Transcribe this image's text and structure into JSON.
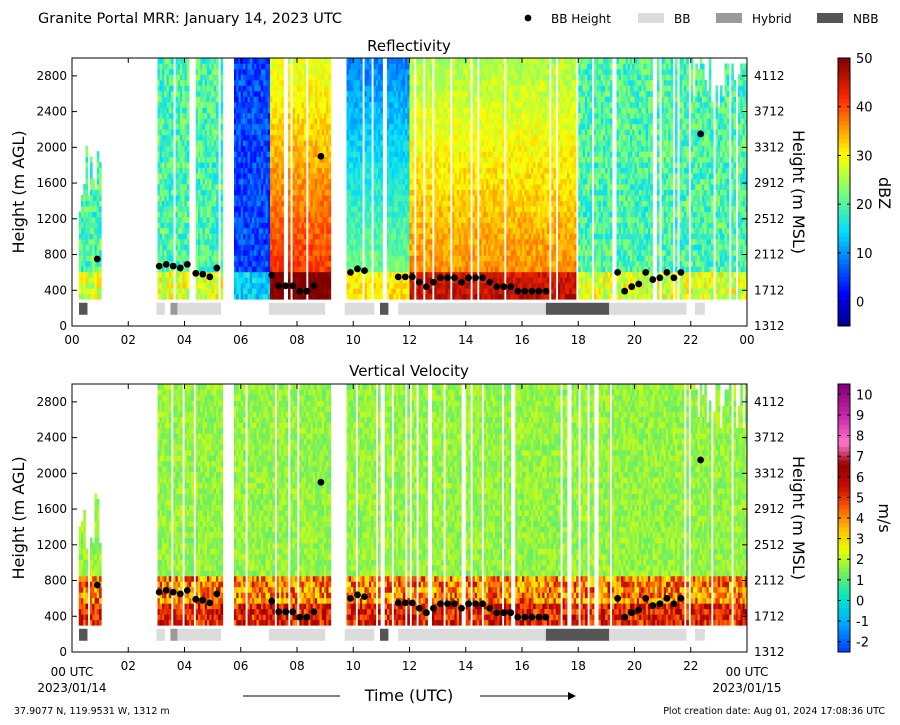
{
  "header": {
    "title": "Granite Portal MRR:  January 14, 2023 UTC",
    "legend": [
      {
        "label": "BB Height",
        "kind": "dot",
        "color": "#000000"
      },
      {
        "label": "BB",
        "kind": "box",
        "color": "#dcdcdc"
      },
      {
        "label": "Hybrid",
        "kind": "box",
        "color": "#9a9a9a"
      },
      {
        "label": "NBB",
        "kind": "box",
        "color": "#555555"
      }
    ]
  },
  "footer": {
    "location": "37.9077 N, 119.9531 W, 1312 m",
    "created": "Plot creation date: Aug 01, 2024 17:08:36 UTC",
    "xlabel": "Time (UTC)",
    "x_start_label": "00 UTC",
    "x_start_date": "2023/01/14",
    "x_end_label": "00 UTC",
    "x_end_date": "2023/01/15"
  },
  "chart_data": [
    {
      "type": "heatmap",
      "title": "Reflectivity",
      "ylabel": "Height (m AGL)",
      "ylabel_right": "Height (m MSL)",
      "colorbar_label": "dBZ",
      "colorbar_ticks": [
        "0",
        "10",
        "20",
        "30",
        "40",
        "50"
      ],
      "colorbar_range": [
        -5,
        50
      ],
      "x_ticks": [
        "00",
        "02",
        "04",
        "06",
        "08",
        "10",
        "12",
        "14",
        "16",
        "18",
        "20",
        "22",
        "00"
      ],
      "y_ticks": [
        "0",
        "400",
        "800",
        "1200",
        "1600",
        "2000",
        "2400",
        "2800"
      ],
      "y_ticks_right": [
        "1312",
        "1712",
        "2112",
        "2512",
        "2912",
        "3312",
        "3712",
        "4112"
      ],
      "xlim": [
        0,
        24
      ],
      "ylim": [
        0,
        3000
      ],
      "field": "reflectivity"
    },
    {
      "type": "heatmap",
      "title": "Vertical Velocity",
      "ylabel": "Height (m AGL)",
      "ylabel_right": "Height (m MSL)",
      "colorbar_label": "m/s",
      "colorbar_ticks": [
        "-2",
        "-1",
        "0",
        "1",
        "2",
        "3",
        "4",
        "5",
        "6",
        "7",
        "8",
        "9",
        "10"
      ],
      "colorbar_range": [
        -2.5,
        10.5
      ],
      "x_ticks": [
        "",
        "02",
        "04",
        "06",
        "08",
        "10",
        "12",
        "14",
        "16",
        "18",
        "20",
        "22",
        ""
      ],
      "y_ticks": [
        "0",
        "400",
        "800",
        "1200",
        "1600",
        "2000",
        "2400",
        "2800"
      ],
      "y_ticks_right": [
        "1312",
        "1712",
        "2112",
        "2512",
        "2912",
        "3312",
        "3712",
        "4112"
      ],
      "xlim": [
        0,
        24
      ],
      "ylim": [
        0,
        3000
      ],
      "field": "velocity"
    }
  ],
  "shared": {
    "bb_height": [
      [
        0.9,
        750
      ],
      [
        3.1,
        670
      ],
      [
        3.35,
        690
      ],
      [
        3.6,
        670
      ],
      [
        3.85,
        650
      ],
      [
        4.1,
        690
      ],
      [
        4.4,
        590
      ],
      [
        4.65,
        580
      ],
      [
        4.9,
        550
      ],
      [
        5.15,
        650
      ],
      [
        7.1,
        570
      ],
      [
        7.35,
        450
      ],
      [
        7.6,
        450
      ],
      [
        7.85,
        450
      ],
      [
        8.1,
        390
      ],
      [
        8.35,
        390
      ],
      [
        8.6,
        450
      ],
      [
        8.85,
        1900
      ],
      [
        9.9,
        600
      ],
      [
        10.15,
        640
      ],
      [
        10.4,
        620
      ],
      [
        11.6,
        550
      ],
      [
        11.85,
        550
      ],
      [
        12.1,
        550
      ],
      [
        12.35,
        490
      ],
      [
        12.6,
        440
      ],
      [
        12.85,
        490
      ],
      [
        13.1,
        540
      ],
      [
        13.35,
        540
      ],
      [
        13.6,
        540
      ],
      [
        13.85,
        490
      ],
      [
        14.1,
        540
      ],
      [
        14.35,
        540
      ],
      [
        14.6,
        540
      ],
      [
        14.85,
        490
      ],
      [
        15.1,
        440
      ],
      [
        15.35,
        440
      ],
      [
        15.6,
        440
      ],
      [
        15.85,
        390
      ],
      [
        16.1,
        390
      ],
      [
        16.35,
        390
      ],
      [
        16.6,
        390
      ],
      [
        16.85,
        390
      ],
      [
        19.4,
        600
      ],
      [
        19.65,
        390
      ],
      [
        19.9,
        440
      ],
      [
        20.15,
        470
      ],
      [
        20.4,
        600
      ],
      [
        20.65,
        520
      ],
      [
        20.9,
        540
      ],
      [
        21.15,
        600
      ],
      [
        21.4,
        540
      ],
      [
        21.65,
        600
      ],
      [
        22.35,
        2150
      ]
    ],
    "bb_segments": [
      {
        "start": 0.25,
        "end": 0.55,
        "type": "NBB"
      },
      {
        "start": 3.0,
        "end": 3.3,
        "type": "BB"
      },
      {
        "start": 3.5,
        "end": 3.75,
        "type": "Hybrid"
      },
      {
        "start": 3.75,
        "end": 5.3,
        "type": "BB"
      },
      {
        "start": 7.0,
        "end": 9.0,
        "type": "BB"
      },
      {
        "start": 9.7,
        "end": 10.75,
        "type": "BB"
      },
      {
        "start": 10.95,
        "end": 11.25,
        "type": "NBB"
      },
      {
        "start": 11.6,
        "end": 16.85,
        "type": "BB"
      },
      {
        "start": 16.85,
        "end": 19.1,
        "type": "NBB"
      },
      {
        "start": 19.1,
        "end": 21.85,
        "type": "BB"
      },
      {
        "start": 22.15,
        "end": 22.5,
        "type": "BB"
      }
    ],
    "echo_periods": [
      [
        0.2,
        1.0
      ],
      [
        3.0,
        5.35
      ],
      [
        5.7,
        9.2
      ],
      [
        9.7,
        21.9
      ],
      [
        22.0,
        24.0
      ]
    ]
  },
  "colors": {
    "BB": "#dcdcdc",
    "Hybrid": "#9a9a9a",
    "NBB": "#555555"
  }
}
